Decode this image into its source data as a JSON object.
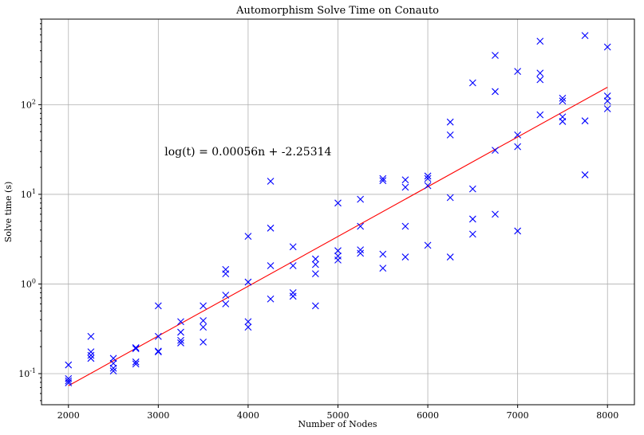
{
  "chart_data": {
    "type": "scatter",
    "title": "Automorphism Solve Time on Conauto",
    "xlabel": "Number of Nodes",
    "ylabel": "Solve time (s)",
    "xlim": [
      1700,
      8300
    ],
    "ylim": [
      0.045,
      900
    ],
    "yscale": "log",
    "grid": true,
    "x_ticks": [
      2000,
      3000,
      4000,
      5000,
      6000,
      7000,
      8000
    ],
    "x_tick_labels": [
      "2000",
      "3000",
      "4000",
      "5000",
      "6000",
      "7000",
      "8000"
    ],
    "y_ticks": [
      0.1,
      1,
      10,
      100
    ],
    "y_tick_labels": [
      "10^-1",
      "10^0",
      "10^1",
      "10^2"
    ],
    "series": [
      {
        "marker": "x",
        "color": "#0000ff",
        "points": [
          [
            2000,
            0.125
          ],
          [
            2000,
            0.088
          ],
          [
            2000,
            0.083
          ],
          [
            2000,
            0.079
          ],
          [
            2250,
            0.26
          ],
          [
            2250,
            0.175
          ],
          [
            2250,
            0.16
          ],
          [
            2250,
            0.148
          ],
          [
            2500,
            0.148
          ],
          [
            2500,
            0.13
          ],
          [
            2500,
            0.115
          ],
          [
            2500,
            0.107
          ],
          [
            2750,
            0.195
          ],
          [
            2750,
            0.19
          ],
          [
            2750,
            0.135
          ],
          [
            2750,
            0.128
          ],
          [
            3000,
            0.57
          ],
          [
            3000,
            0.26
          ],
          [
            3000,
            0.178
          ],
          [
            3000,
            0.175
          ],
          [
            3250,
            0.38
          ],
          [
            3250,
            0.29
          ],
          [
            3250,
            0.235
          ],
          [
            3250,
            0.22
          ],
          [
            3500,
            0.57
          ],
          [
            3500,
            0.39
          ],
          [
            3500,
            0.33
          ],
          [
            3500,
            0.225
          ],
          [
            3750,
            1.45
          ],
          [
            3750,
            1.3
          ],
          [
            3750,
            0.75
          ],
          [
            3750,
            0.6
          ],
          [
            4000,
            3.4
          ],
          [
            4000,
            1.05
          ],
          [
            4000,
            0.38
          ],
          [
            4000,
            0.33
          ],
          [
            4250,
            14
          ],
          [
            4250,
            4.2
          ],
          [
            4250,
            1.6
          ],
          [
            4250,
            0.68
          ],
          [
            4500,
            2.6
          ],
          [
            4500,
            1.6
          ],
          [
            4500,
            0.8
          ],
          [
            4500,
            0.73
          ],
          [
            4750,
            1.9
          ],
          [
            4750,
            1.65
          ],
          [
            4750,
            1.3
          ],
          [
            4750,
            0.57
          ],
          [
            5000,
            8
          ],
          [
            5000,
            2.35
          ],
          [
            5000,
            2.05
          ],
          [
            5000,
            1.85
          ],
          [
            5250,
            8.8
          ],
          [
            5250,
            4.4
          ],
          [
            5250,
            2.4
          ],
          [
            5250,
            2.2
          ],
          [
            5500,
            15
          ],
          [
            5500,
            14.2
          ],
          [
            5500,
            2.15
          ],
          [
            5500,
            1.5
          ],
          [
            5750,
            14.5
          ],
          [
            5750,
            12
          ],
          [
            5750,
            4.4
          ],
          [
            5750,
            2
          ],
          [
            6000,
            16
          ],
          [
            6000,
            15
          ],
          [
            6000,
            12.5
          ],
          [
            6000,
            2.7
          ],
          [
            6250,
            64
          ],
          [
            6250,
            46
          ],
          [
            6250,
            9.2
          ],
          [
            6250,
            2
          ],
          [
            6500,
            175
          ],
          [
            6500,
            11.5
          ],
          [
            6500,
            5.3
          ],
          [
            6500,
            3.6
          ],
          [
            6750,
            355
          ],
          [
            6750,
            140
          ],
          [
            6750,
            31
          ],
          [
            6750,
            6
          ],
          [
            7000,
            235
          ],
          [
            7000,
            46
          ],
          [
            7000,
            34
          ],
          [
            7000,
            3.9
          ],
          [
            7250,
            510
          ],
          [
            7250,
            225
          ],
          [
            7250,
            190
          ],
          [
            7250,
            77
          ],
          [
            7500,
            118
          ],
          [
            7500,
            110
          ],
          [
            7500,
            73
          ],
          [
            7500,
            65
          ],
          [
            7750,
            590
          ],
          [
            7750,
            66
          ],
          [
            7750,
            16.5
          ],
          [
            8000,
            440
          ],
          [
            8000,
            125
          ],
          [
            8000,
            110
          ],
          [
            8000,
            90
          ]
        ]
      },
      {
        "type": "line",
        "color": "#ff0000",
        "x": [
          2000,
          8000
        ],
        "y": [
          0.0733,
          156.6
        ]
      }
    ],
    "annotations": [
      {
        "text": "log(t) = 0.00056n + -2.25314",
        "x": 3070,
        "y": 30
      }
    ]
  }
}
